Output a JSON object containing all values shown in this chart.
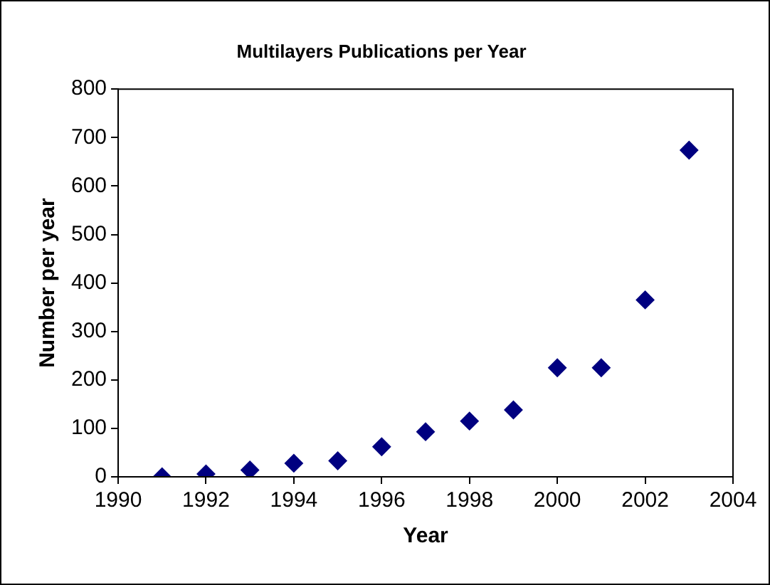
{
  "chart_data": {
    "type": "scatter",
    "title": "Multilayers Publications per Year",
    "xlabel": "Year",
    "ylabel": "Number per year",
    "x": [
      1991,
      1992,
      1993,
      1994,
      1995,
      1996,
      1997,
      1998,
      1999,
      2000,
      2001,
      2002,
      2003
    ],
    "series": [
      {
        "color": "#000080",
        "values": [
          0,
          6,
          14,
          28,
          33,
          62,
          93,
          115,
          138,
          225,
          225,
          365,
          674
        ]
      }
    ],
    "xlim": [
      1990,
      2004
    ],
    "xticks": [
      1990,
      1992,
      1994,
      1996,
      1998,
      2000,
      2002,
      2004
    ],
    "ylim": [
      0,
      800
    ],
    "yticks": [
      0,
      100,
      200,
      300,
      400,
      500,
      600,
      700,
      800
    ],
    "grid": false,
    "legend": false,
    "marker": "diamond"
  }
}
